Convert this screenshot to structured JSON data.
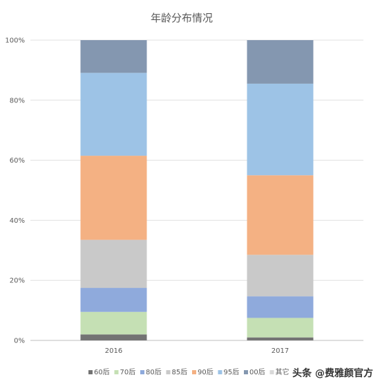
{
  "chart_data": {
    "type": "bar",
    "stacked": "percent",
    "title": "年龄分布情况",
    "categories": [
      "2016",
      "2017"
    ],
    "y_ticks": [
      "0%",
      "20%",
      "40%",
      "60%",
      "80%",
      "100%"
    ],
    "ylim": [
      0,
      100
    ],
    "grid": true,
    "legend_position": "bottom",
    "series": [
      {
        "name": "60后",
        "color": "#737373",
        "values": [
          2,
          1
        ]
      },
      {
        "name": "70后",
        "color": "#c5e0b4",
        "values": [
          7.5,
          6.5
        ]
      },
      {
        "name": "80后",
        "color": "#8faadc",
        "values": [
          8,
          7.2
        ]
      },
      {
        "name": "85后",
        "color": "#c9c9c9",
        "values": [
          16,
          13.8
        ]
      },
      {
        "name": "90后",
        "color": "#f4b183",
        "values": [
          28,
          26.5
        ]
      },
      {
        "name": "95后",
        "color": "#9dc3e6",
        "values": [
          27.6,
          30.5
        ]
      },
      {
        "name": "00后",
        "color": "#8497b0",
        "values": [
          10.9,
          14.5
        ]
      },
      {
        "name": "其它",
        "color": "#d9d9d9",
        "values": [
          0,
          0
        ]
      }
    ]
  },
  "watermark": "头条 @费雅颜官方"
}
